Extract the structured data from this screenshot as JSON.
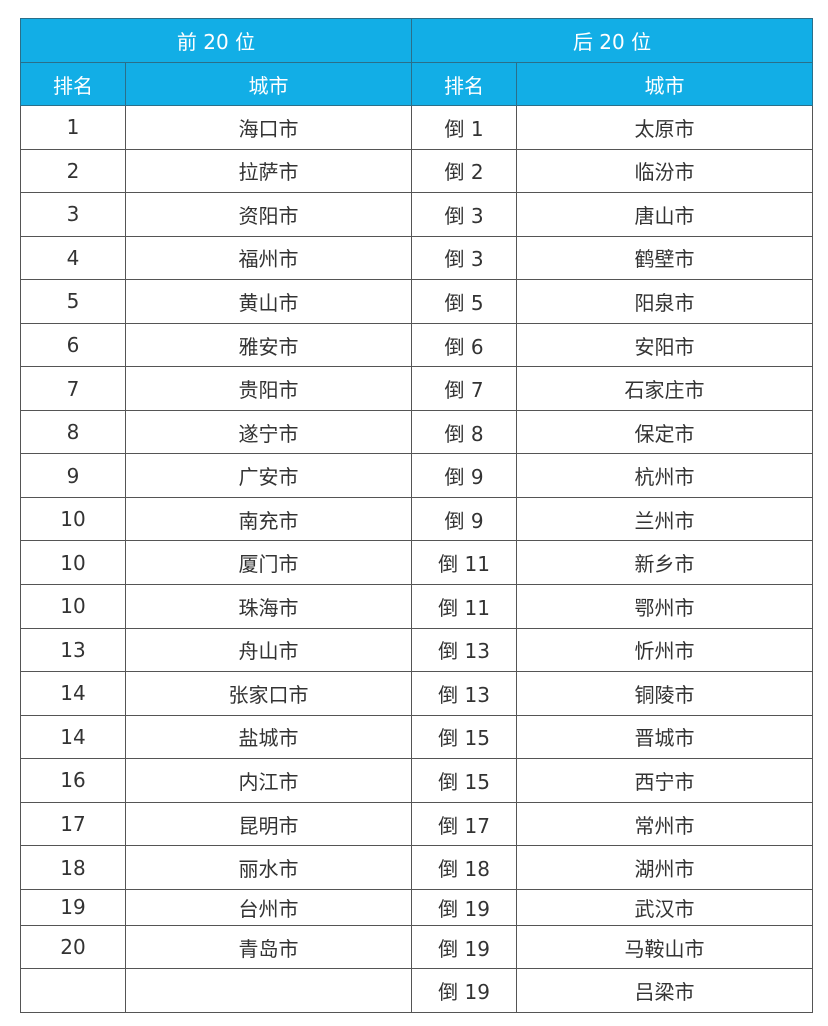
{
  "colors": {
    "header_bg": "#12AEE6",
    "header_text": "#FFFFFF"
  },
  "headers": {
    "top": "前 20 位",
    "bottom": "后 20 位",
    "rank": "排名",
    "city": "城市"
  },
  "top20": [
    {
      "rank": "1",
      "city": "海口市"
    },
    {
      "rank": "2",
      "city": "拉萨市"
    },
    {
      "rank": "3",
      "city": "资阳市"
    },
    {
      "rank": "4",
      "city": "福州市"
    },
    {
      "rank": "5",
      "city": "黄山市"
    },
    {
      "rank": "6",
      "city": "雅安市"
    },
    {
      "rank": "7",
      "city": "贵阳市"
    },
    {
      "rank": "8",
      "city": "遂宁市"
    },
    {
      "rank": "9",
      "city": "广安市"
    },
    {
      "rank": "10",
      "city": "南充市"
    },
    {
      "rank": "10",
      "city": "厦门市"
    },
    {
      "rank": "10",
      "city": "珠海市"
    },
    {
      "rank": "13",
      "city": "舟山市"
    },
    {
      "rank": "14",
      "city": "张家口市"
    },
    {
      "rank": "14",
      "city": "盐城市"
    },
    {
      "rank": "16",
      "city": "内江市"
    },
    {
      "rank": "17",
      "city": "昆明市"
    },
    {
      "rank": "18",
      "city": "丽水市"
    },
    {
      "rank": "19",
      "city": "台州市"
    },
    {
      "rank": "20",
      "city": "青岛市"
    }
  ],
  "bottom20": [
    {
      "rank": "倒 1",
      "city": "太原市"
    },
    {
      "rank": "倒 2",
      "city": "临汾市"
    },
    {
      "rank": "倒 3",
      "city": "唐山市"
    },
    {
      "rank": "倒 3",
      "city": "鹤壁市"
    },
    {
      "rank": "倒 5",
      "city": "阳泉市"
    },
    {
      "rank": "倒 6",
      "city": "安阳市"
    },
    {
      "rank": "倒 7",
      "city": "石家庄市"
    },
    {
      "rank": "倒 8",
      "city": "保定市"
    },
    {
      "rank": "倒 9",
      "city": "杭州市"
    },
    {
      "rank": "倒 9",
      "city": "兰州市"
    },
    {
      "rank": "倒 11",
      "city": "新乡市"
    },
    {
      "rank": "倒 11",
      "city": "鄂州市"
    },
    {
      "rank": "倒 13",
      "city": "忻州市"
    },
    {
      "rank": "倒 13",
      "city": "铜陵市"
    },
    {
      "rank": "倒 15",
      "city": "晋城市"
    },
    {
      "rank": "倒 15",
      "city": "西宁市"
    },
    {
      "rank": "倒 17",
      "city": "常州市"
    },
    {
      "rank": "倒 18",
      "city": "湖州市"
    },
    {
      "rank": "倒 19",
      "city": "武汉市"
    },
    {
      "rank": "倒 19",
      "city": "马鞍山市"
    },
    {
      "rank": "倒 19",
      "city": "吕梁市"
    }
  ]
}
